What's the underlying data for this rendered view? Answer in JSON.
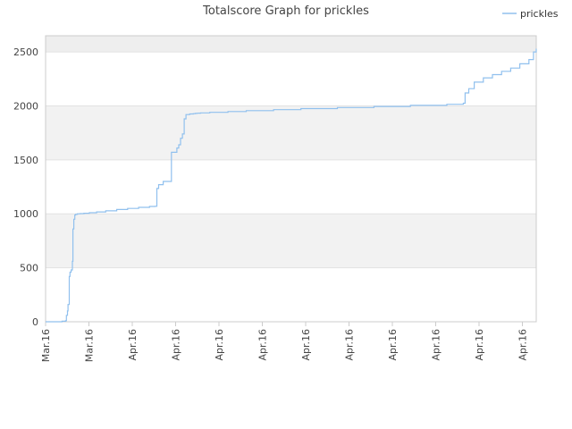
{
  "chart_data": {
    "type": "line",
    "title": "Totalscore Graph for prickles",
    "xlabel": "",
    "ylabel": "",
    "ylim": [
      0,
      2650
    ],
    "y_ticks": [
      0,
      500,
      1000,
      1500,
      2000,
      2500
    ],
    "x_tick_labels": [
      "Mar.16",
      "Mar.16",
      "Apr.16",
      "Apr.16",
      "Apr.16",
      "Apr.16",
      "Apr.16",
      "Apr.16",
      "Apr.16",
      "Apr.16",
      "Apr.16",
      "Apr.16"
    ],
    "grid": true,
    "legend_position": "top-right",
    "colors": {
      "series": "#90c0ee",
      "band": "#f2f2f2",
      "grid": "#e2e2e2",
      "axis": "#cccccc"
    },
    "x": [
      0,
      18,
      22,
      22.8,
      24,
      24.6,
      26,
      26.8,
      28,
      29.4,
      30,
      31,
      32,
      33,
      35,
      38,
      42,
      48,
      56,
      66,
      78,
      90,
      102,
      114,
      120,
      122,
      124,
      129,
      138,
      144,
      146,
      148,
      150,
      152,
      154,
      158,
      162,
      164,
      166,
      168,
      170,
      180,
      200,
      220,
      250,
      280,
      320,
      360,
      400,
      440,
      458,
      460,
      464,
      470,
      480,
      490,
      500,
      510,
      520,
      530,
      535,
      538
    ],
    "series": [
      {
        "name": "prickles",
        "values": [
          0,
          5,
          10,
          60,
          100,
          160,
          420,
          460,
          480,
          560,
          860,
          950,
          990,
          995,
          1000,
          1002,
          1005,
          1010,
          1018,
          1028,
          1040,
          1050,
          1060,
          1068,
          1070,
          1235,
          1270,
          1300,
          1570,
          1610,
          1640,
          1700,
          1740,
          1880,
          1920,
          1925,
          1928,
          1930,
          1932,
          1933,
          1935,
          1940,
          1948,
          1956,
          1965,
          1975,
          1985,
          1995,
          2005,
          2015,
          2025,
          2120,
          2160,
          2220,
          2260,
          2290,
          2320,
          2350,
          2390,
          2430,
          2500,
          2530
        ]
      }
    ]
  }
}
